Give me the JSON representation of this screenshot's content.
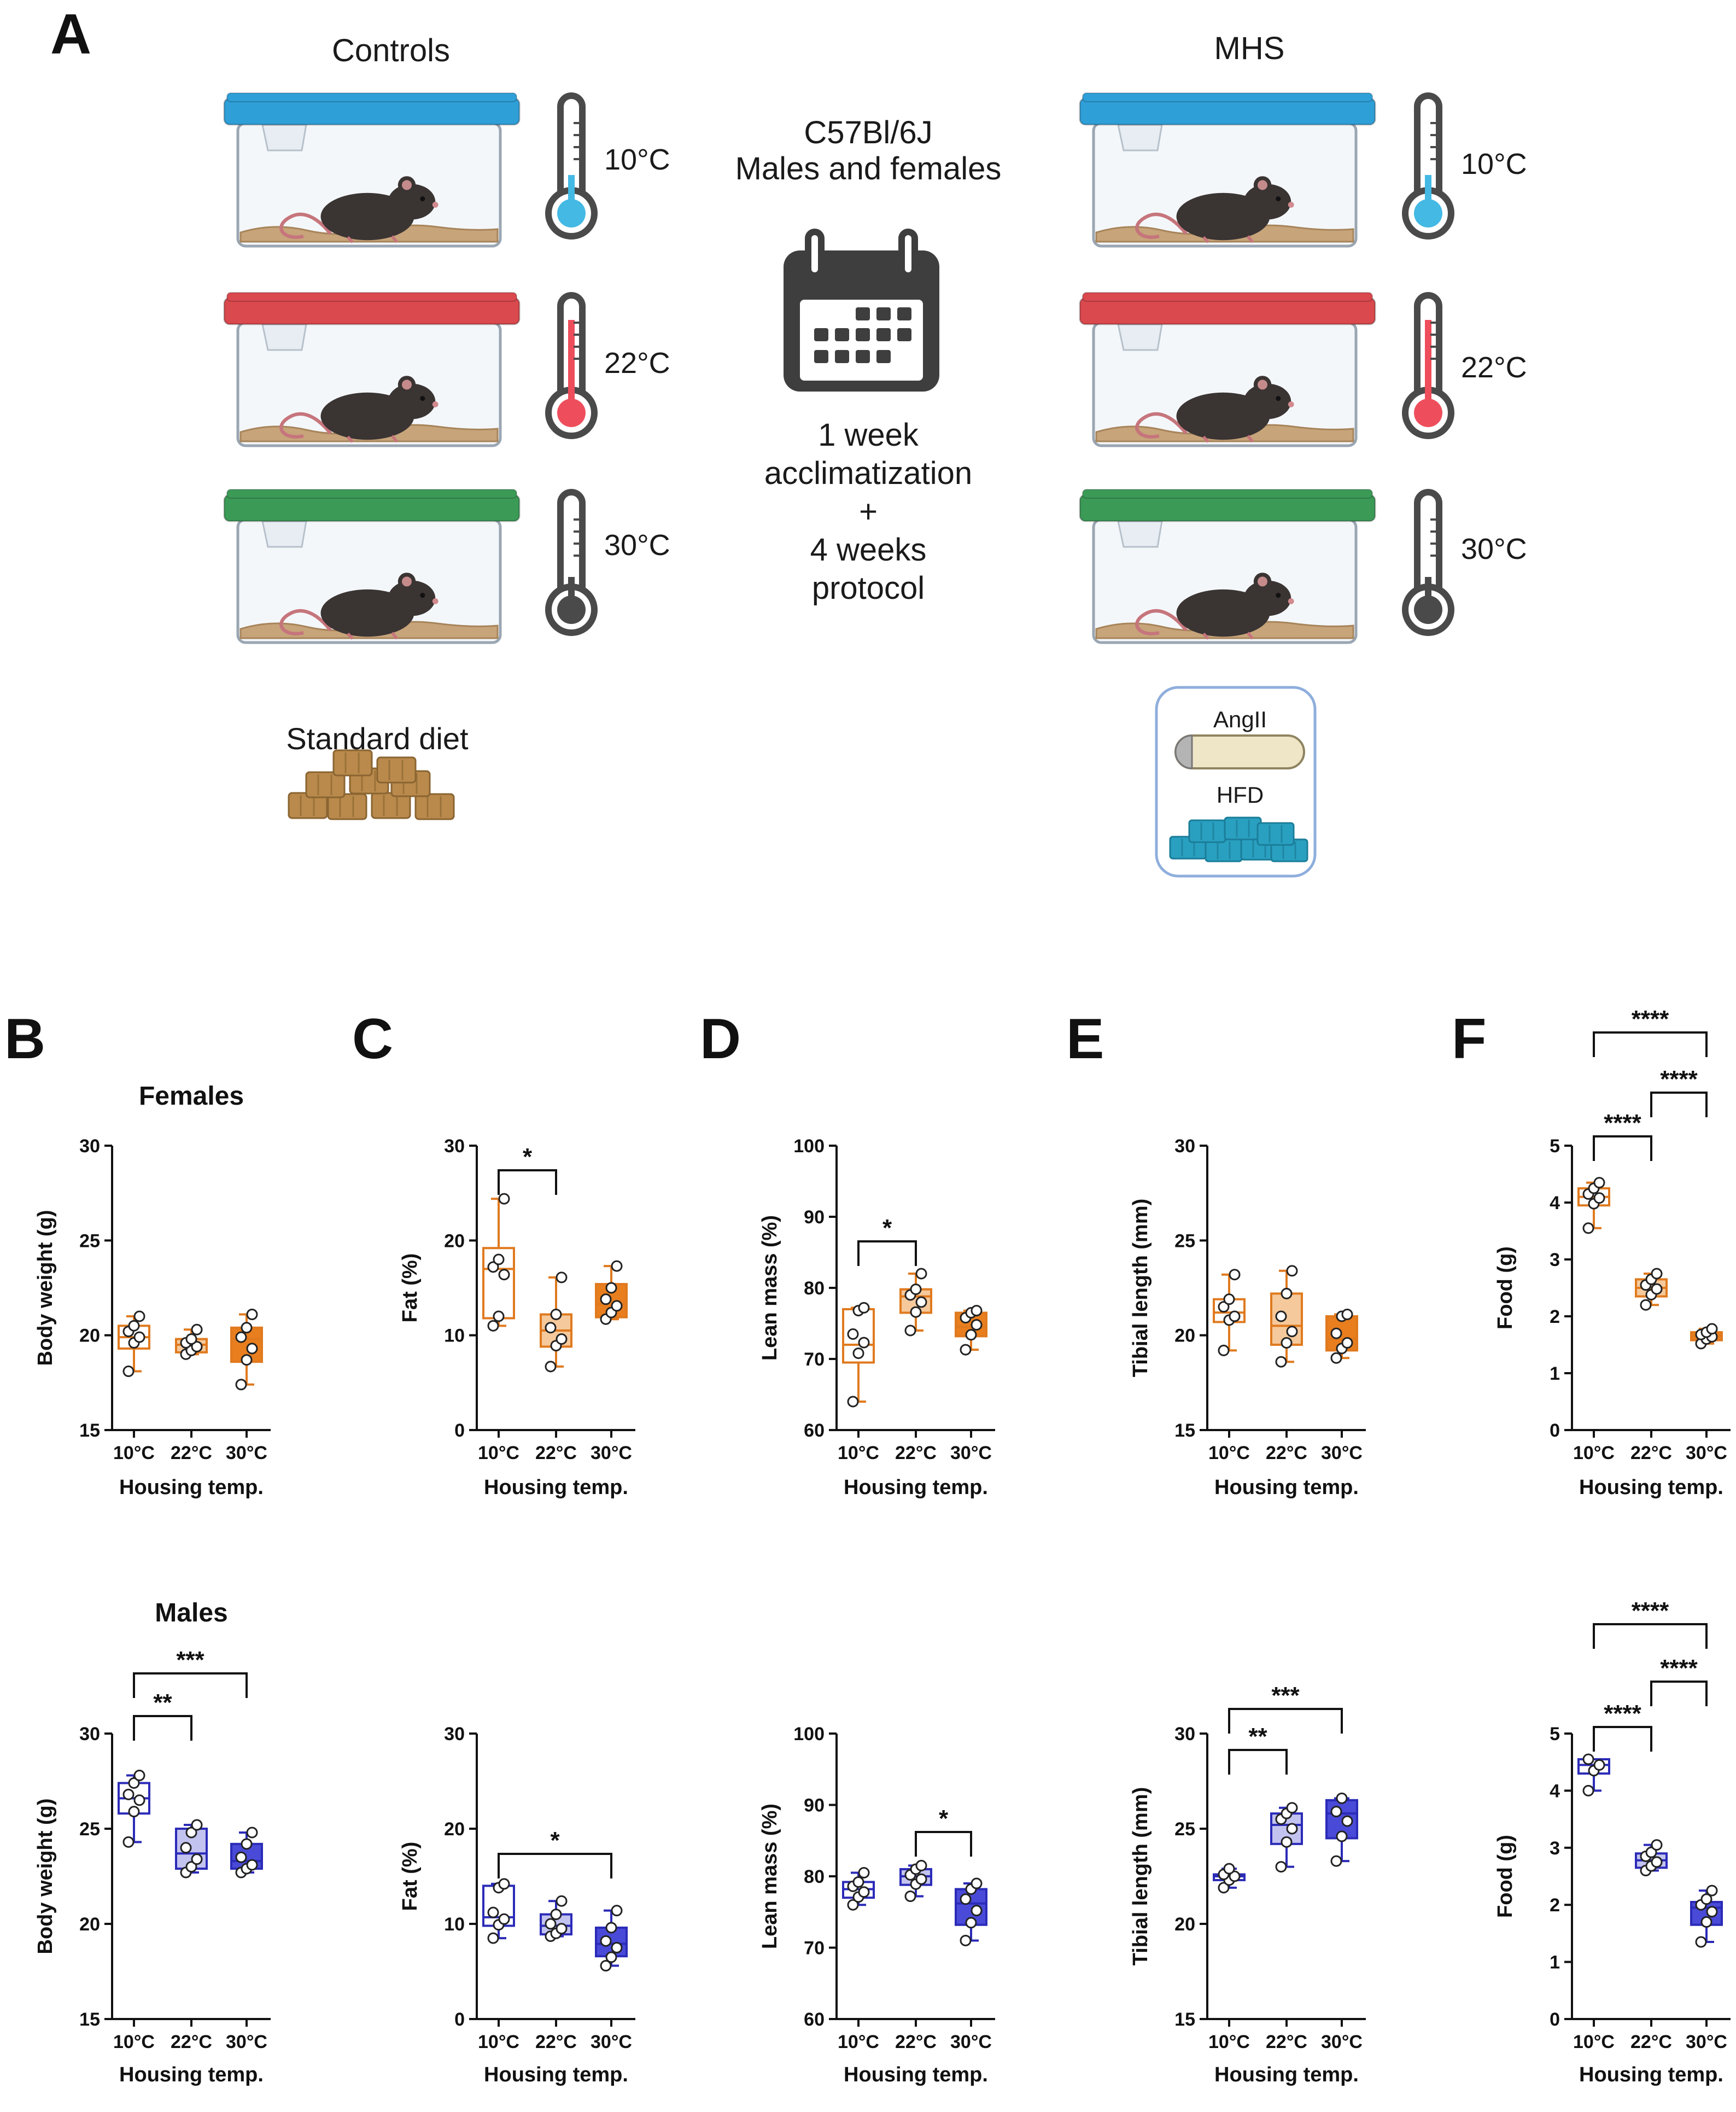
{
  "panel_labels": [
    "A",
    "B",
    "C",
    "D",
    "E",
    "F"
  ],
  "schematic": {
    "controls_label": "Controls",
    "mhs_label": "MHS",
    "temps": [
      "10°C",
      "22°C",
      "30°C"
    ],
    "strain": "C57Bl/6J",
    "sexes": "Males and females",
    "protocol_lines": [
      "1 week",
      "acclimatization",
      "+",
      "4 weeks",
      "protocol"
    ],
    "standard_diet": "Standard diet",
    "angii": "AngII",
    "hfd": "HFD",
    "lid_colors": [
      "#2f9fd8",
      "#d9494d",
      "#3c9a57"
    ],
    "bulb_colors": [
      "#43b9e4",
      "#ee4e5c",
      "#4a4a4a"
    ]
  },
  "chart_data": [
    {
      "id": "B-females",
      "type": "box",
      "title": "Females",
      "ylabel": "Body weight (g)",
      "xlabel": "Housing temp.",
      "categories": [
        "10°C",
        "22°C",
        "30°C"
      ],
      "ylim": [
        15,
        30
      ],
      "yticks": [
        15,
        20,
        25,
        30
      ],
      "color": "#e07a1f",
      "fill": [
        "#ffffff",
        "#f5c99b",
        "#e87e1e"
      ],
      "boxes": [
        {
          "min": 18.1,
          "q1": 19.3,
          "median": 19.9,
          "q3": 20.5,
          "max": 21.0,
          "points": [
            18.1,
            19.6,
            19.9,
            20.2,
            20.5,
            21.0
          ]
        },
        {
          "min": 19.0,
          "q1": 19.1,
          "median": 19.5,
          "q3": 19.8,
          "max": 20.3,
          "points": [
            19.0,
            19.2,
            19.4,
            19.6,
            19.8,
            20.3
          ]
        },
        {
          "min": 17.4,
          "q1": 18.6,
          "median": 19.8,
          "q3": 20.4,
          "max": 21.1,
          "points": [
            17.4,
            18.7,
            19.3,
            19.9,
            20.4,
            21.1
          ]
        }
      ],
      "sig": []
    },
    {
      "id": "C-females",
      "type": "box",
      "title": "",
      "ylabel": "Fat (%)",
      "xlabel": "Housing temp.",
      "categories": [
        "10°C",
        "22°C",
        "30°C"
      ],
      "ylim": [
        0,
        30
      ],
      "yticks": [
        0,
        10,
        20,
        30
      ],
      "color": "#e07a1f",
      "fill": [
        "#ffffff",
        "#f5c99b",
        "#e87e1e"
      ],
      "boxes": [
        {
          "min": 11.0,
          "q1": 11.8,
          "median": 17.0,
          "q3": 19.2,
          "max": 24.4,
          "points": [
            11.0,
            12.0,
            16.4,
            17.2,
            18.0,
            24.4
          ]
        },
        {
          "min": 6.7,
          "q1": 8.8,
          "median": 10.5,
          "q3": 12.2,
          "max": 16.1,
          "points": [
            6.7,
            8.9,
            9.6,
            10.8,
            12.2,
            16.1
          ]
        },
        {
          "min": 11.7,
          "q1": 11.9,
          "median": 13.3,
          "q3": 15.4,
          "max": 17.3,
          "points": [
            11.7,
            12.4,
            13.1,
            13.8,
            15.0,
            17.3
          ]
        }
      ],
      "sig": [
        {
          "from": 0,
          "to": 1,
          "label": "*"
        }
      ]
    },
    {
      "id": "D-females",
      "type": "box",
      "title": "",
      "ylabel": "Lean mass (%)",
      "xlabel": "Housing temp.",
      "categories": [
        "10°C",
        "22°C",
        "30°C"
      ],
      "ylim": [
        60,
        100
      ],
      "yticks": [
        60,
        70,
        80,
        90,
        100
      ],
      "color": "#e07a1f",
      "fill": [
        "#ffffff",
        "#f5c99b",
        "#e87e1e"
      ],
      "boxes": [
        {
          "min": 64.0,
          "q1": 69.5,
          "median": 72.0,
          "q3": 77.0,
          "max": 77.2,
          "points": [
            64.0,
            70.8,
            72.3,
            73.5,
            76.8,
            77.2
          ]
        },
        {
          "min": 74.0,
          "q1": 76.5,
          "median": 78.8,
          "q3": 79.8,
          "max": 82.0,
          "points": [
            74.0,
            76.6,
            78.0,
            79.0,
            79.8,
            82.0
          ]
        },
        {
          "min": 71.3,
          "q1": 73.2,
          "median": 74.5,
          "q3": 76.5,
          "max": 76.8,
          "points": [
            71.3,
            73.4,
            74.8,
            75.8,
            76.5,
            76.8
          ]
        }
      ],
      "sig": [
        {
          "from": 0,
          "to": 1,
          "label": "*"
        }
      ]
    },
    {
      "id": "E-females",
      "type": "box",
      "title": "",
      "ylabel": "Tibial length (mm)",
      "xlabel": "Housing temp.",
      "categories": [
        "10°C",
        "22°C",
        "30°C"
      ],
      "ylim": [
        15,
        30
      ],
      "yticks": [
        15,
        20,
        25,
        30
      ],
      "color": "#e07a1f",
      "fill": [
        "#ffffff",
        "#f5c99b",
        "#e87e1e"
      ],
      "boxes": [
        {
          "min": 19.2,
          "q1": 20.7,
          "median": 21.2,
          "q3": 21.9,
          "max": 23.2,
          "points": [
            19.2,
            20.8,
            21.0,
            21.5,
            21.9,
            23.2
          ]
        },
        {
          "min": 18.6,
          "q1": 19.5,
          "median": 20.5,
          "q3": 22.2,
          "max": 23.4,
          "points": [
            18.6,
            19.6,
            20.2,
            21.0,
            22.2,
            23.4
          ]
        },
        {
          "min": 18.8,
          "q1": 19.2,
          "median": 19.8,
          "q3": 21.0,
          "max": 21.1,
          "points": [
            18.8,
            19.3,
            19.6,
            20.1,
            21.0,
            21.1
          ]
        }
      ],
      "sig": []
    },
    {
      "id": "F-females",
      "type": "box",
      "title": "",
      "ylabel": "Food  (g)",
      "xlabel": "Housing temp.",
      "categories": [
        "10°C",
        "22°C",
        "30°C"
      ],
      "ylim": [
        0,
        5
      ],
      "yticks": [
        0,
        1,
        2,
        3,
        4,
        5
      ],
      "color": "#e07a1f",
      "fill": [
        "#ffffff",
        "#f5c99b",
        "#e87e1e"
      ],
      "boxes": [
        {
          "min": 3.55,
          "q1": 3.95,
          "median": 4.1,
          "q3": 4.25,
          "max": 4.35,
          "points": [
            3.55,
            3.98,
            4.08,
            4.15,
            4.25,
            4.35
          ]
        },
        {
          "min": 2.2,
          "q1": 2.35,
          "median": 2.5,
          "q3": 2.65,
          "max": 2.75,
          "points": [
            2.2,
            2.38,
            2.48,
            2.55,
            2.65,
            2.75
          ]
        },
        {
          "min": 1.52,
          "q1": 1.58,
          "median": 1.65,
          "q3": 1.72,
          "max": 1.78,
          "points": [
            1.52,
            1.6,
            1.64,
            1.68,
            1.72,
            1.78
          ]
        }
      ],
      "sig": [
        {
          "from": 0,
          "to": 1,
          "label": "****"
        },
        {
          "from": 1,
          "to": 2,
          "label": "****"
        },
        {
          "from": 0,
          "to": 2,
          "label": "****"
        }
      ]
    },
    {
      "id": "B-males",
      "type": "box",
      "title": "Males",
      "ylabel": "Body weight (g)",
      "xlabel": "Housing temp.",
      "categories": [
        "10°C",
        "22°C",
        "30°C"
      ],
      "ylim": [
        15,
        30
      ],
      "yticks": [
        15,
        20,
        25,
        30
      ],
      "color": "#2b2bb8",
      "fill": [
        "#ffffff",
        "#c3c3f0",
        "#4a4ad8"
      ],
      "boxes": [
        {
          "min": 24.3,
          "q1": 25.8,
          "median": 26.6,
          "q3": 27.4,
          "max": 27.8,
          "points": [
            24.3,
            25.9,
            26.5,
            26.8,
            27.4,
            27.8
          ]
        },
        {
          "min": 22.7,
          "q1": 22.9,
          "median": 23.7,
          "q3": 25.0,
          "max": 25.2,
          "points": [
            22.7,
            23.0,
            23.4,
            24.0,
            24.8,
            25.2
          ]
        },
        {
          "min": 22.7,
          "q1": 22.9,
          "median": 23.3,
          "q3": 24.2,
          "max": 24.8,
          "points": [
            22.7,
            22.9,
            23.1,
            23.5,
            24.2,
            24.8
          ]
        }
      ],
      "sig": [
        {
          "from": 0,
          "to": 1,
          "label": "**"
        },
        {
          "from": 0,
          "to": 2,
          "label": "***"
        }
      ]
    },
    {
      "id": "C-males",
      "type": "box",
      "title": "",
      "ylabel": "Fat (%)",
      "xlabel": "Housing temp.",
      "categories": [
        "10°C",
        "22°C",
        "30°C"
      ],
      "ylim": [
        0,
        30
      ],
      "yticks": [
        0,
        10,
        20,
        30
      ],
      "color": "#2b2bb8",
      "fill": [
        "#ffffff",
        "#c3c3f0",
        "#4a4ad8"
      ],
      "boxes": [
        {
          "min": 8.5,
          "q1": 9.8,
          "median": 10.7,
          "q3": 14.0,
          "max": 14.2,
          "points": [
            8.5,
            9.9,
            10.5,
            11.2,
            13.8,
            14.2
          ]
        },
        {
          "min": 8.7,
          "q1": 8.9,
          "median": 9.8,
          "q3": 11.0,
          "max": 12.4,
          "points": [
            8.7,
            9.0,
            9.5,
            10.0,
            11.0,
            12.4
          ]
        },
        {
          "min": 5.6,
          "q1": 6.6,
          "median": 7.9,
          "q3": 9.6,
          "max": 11.4,
          "points": [
            5.6,
            6.5,
            7.5,
            8.2,
            9.6,
            11.4
          ]
        }
      ],
      "sig": [
        {
          "from": 0,
          "to": 2,
          "label": "*"
        }
      ]
    },
    {
      "id": "D-males",
      "type": "box",
      "title": "",
      "ylabel": "Lean mass (%)",
      "xlabel": "Housing temp.",
      "categories": [
        "10°C",
        "22°C",
        "30°C"
      ],
      "ylim": [
        60,
        100
      ],
      "yticks": [
        60,
        70,
        80,
        90,
        100
      ],
      "color": "#2b2bb8",
      "fill": [
        "#ffffff",
        "#c3c3f0",
        "#4a4ad8"
      ],
      "boxes": [
        {
          "min": 76.0,
          "q1": 77.0,
          "median": 78.2,
          "q3": 79.2,
          "max": 80.5,
          "points": [
            76.0,
            77.1,
            77.8,
            78.6,
            79.2,
            80.5
          ]
        },
        {
          "min": 77.2,
          "q1": 78.8,
          "median": 80.0,
          "q3": 81.0,
          "max": 81.5,
          "points": [
            77.2,
            78.9,
            79.6,
            80.2,
            81.0,
            81.5
          ]
        },
        {
          "min": 71.0,
          "q1": 73.2,
          "median": 76.2,
          "q3": 78.2,
          "max": 79.0,
          "points": [
            71.0,
            73.5,
            75.2,
            76.8,
            78.2,
            79.0
          ]
        }
      ],
      "sig": [
        {
          "from": 1,
          "to": 2,
          "label": "*"
        }
      ]
    },
    {
      "id": "E-males",
      "type": "box",
      "title": "",
      "ylabel": "Tibial length (mm)",
      "xlabel": "Housing temp.",
      "categories": [
        "10°C",
        "22°C",
        "30°C"
      ],
      "ylim": [
        15,
        30
      ],
      "yticks": [
        15,
        20,
        25,
        30
      ],
      "color": "#2b2bb8",
      "fill": [
        "#ffffff",
        "#c3c3f0",
        "#4a4ad8"
      ],
      "boxes": [
        {
          "min": 21.9,
          "q1": 22.3,
          "median": 22.5,
          "q3": 22.6,
          "max": 22.9,
          "points": [
            21.9,
            22.3,
            22.5,
            22.6,
            22.9
          ]
        },
        {
          "min": 23.0,
          "q1": 24.2,
          "median": 25.2,
          "q3": 25.8,
          "max": 26.1,
          "points": [
            23.0,
            24.3,
            25.0,
            25.5,
            25.8,
            26.1
          ]
        },
        {
          "min": 23.3,
          "q1": 24.5,
          "median": 25.8,
          "q3": 26.5,
          "max": 26.6,
          "points": [
            23.3,
            24.6,
            25.4,
            25.9,
            26.6
          ]
        }
      ],
      "sig": [
        {
          "from": 0,
          "to": 1,
          "label": "**"
        },
        {
          "from": 0,
          "to": 2,
          "label": "***"
        }
      ]
    },
    {
      "id": "F-males",
      "type": "box",
      "title": "",
      "ylabel": "Food  (g)",
      "xlabel": "Housing temp.",
      "categories": [
        "10°C",
        "22°C",
        "30°C"
      ],
      "ylim": [
        0,
        5
      ],
      "yticks": [
        0,
        1,
        2,
        3,
        4,
        5
      ],
      "color": "#2b2bb8",
      "fill": [
        "#ffffff",
        "#c3c3f0",
        "#4a4ad8"
      ],
      "boxes": [
        {
          "min": 4.0,
          "q1": 4.3,
          "median": 4.45,
          "q3": 4.55,
          "max": 4.55,
          "points": [
            4.0,
            4.35,
            4.45,
            4.55
          ]
        },
        {
          "min": 2.6,
          "q1": 2.65,
          "median": 2.78,
          "q3": 2.9,
          "max": 3.05,
          "points": [
            2.6,
            2.68,
            2.75,
            2.85,
            2.92,
            3.05
          ]
        },
        {
          "min": 1.35,
          "q1": 1.65,
          "median": 1.95,
          "q3": 2.05,
          "max": 2.25,
          "points": [
            1.35,
            1.7,
            1.88,
            2.0,
            2.1,
            2.25
          ]
        }
      ],
      "sig": [
        {
          "from": 0,
          "to": 1,
          "label": "****"
        },
        {
          "from": 1,
          "to": 2,
          "label": "****"
        },
        {
          "from": 0,
          "to": 2,
          "label": "****"
        }
      ]
    }
  ]
}
